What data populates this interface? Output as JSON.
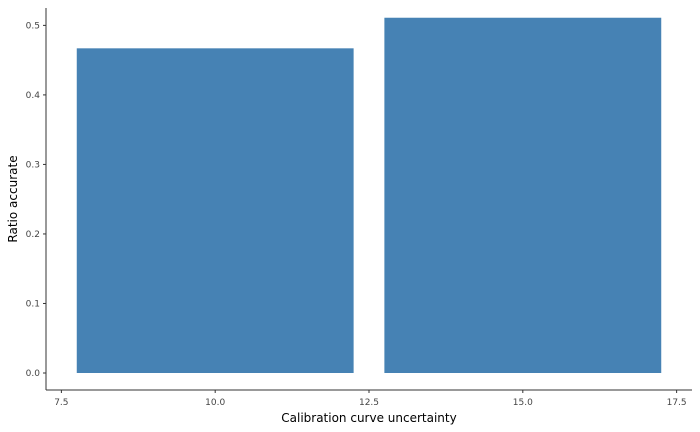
{
  "chart_data": {
    "type": "bar",
    "xlabel": "Calibration curve uncertainty",
    "ylabel": "Ratio accurate",
    "xlim": [
      7.25,
      17.75
    ],
    "ylim": [
      0,
      0.525
    ],
    "x_ticks": [
      7.5,
      10.0,
      12.5,
      15.0,
      17.5
    ],
    "x_tick_labels": [
      "7.5",
      "10.0",
      "12.5",
      "15.0",
      "17.5"
    ],
    "y_ticks": [
      0.0,
      0.1,
      0.2,
      0.3,
      0.4,
      0.5
    ],
    "y_tick_labels": [
      "0.0",
      "0.1",
      "0.2",
      "0.3",
      "0.4",
      "0.5"
    ],
    "bar_width": 4.5,
    "x": [
      10,
      15
    ],
    "values": [
      0.467,
      0.511
    ],
    "bar_color": "#4682b4",
    "grid": false,
    "legend": "none"
  }
}
